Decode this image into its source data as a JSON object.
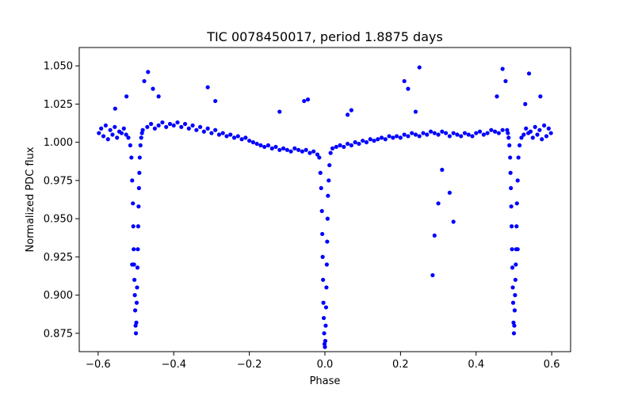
{
  "chart_data": {
    "type": "scatter",
    "title": "TIC 0078450017, period 1.8875 days",
    "xlabel": "Phase",
    "ylabel": "Normalized PDC flux",
    "xlim": [
      -0.65,
      0.65
    ],
    "ylim": [
      0.863,
      1.062
    ],
    "x_ticks": [
      -0.6,
      -0.4,
      -0.2,
      0.0,
      0.2,
      0.4,
      0.6
    ],
    "x_tick_labels": [
      "−0.6",
      "−0.4",
      "−0.2",
      "0.0",
      "0.2",
      "0.4",
      "0.6"
    ],
    "y_ticks": [
      0.875,
      0.9,
      0.925,
      0.95,
      0.975,
      1.0,
      1.025,
      1.05
    ],
    "y_tick_labels": [
      "0.875",
      "0.900",
      "0.925",
      "0.950",
      "0.975",
      "1.000",
      "1.025",
      "1.050"
    ],
    "grid": false,
    "marker_color": "#0000ff",
    "series": [
      {
        "x": [
          -0.598,
          -0.592,
          -0.586,
          -0.58,
          -0.574,
          -0.568,
          -0.562,
          -0.556,
          -0.55,
          -0.544,
          -0.538,
          -0.532,
          -0.526,
          -0.52,
          -0.515,
          -0.512,
          -0.51,
          -0.508,
          -0.507,
          -0.506,
          -0.505,
          -0.504,
          -0.503,
          -0.502,
          -0.501,
          -0.5,
          -0.499,
          -0.498,
          -0.497,
          -0.496,
          -0.495,
          -0.494,
          -0.493,
          -0.492,
          -0.491,
          -0.49,
          -0.488,
          -0.486,
          -0.484,
          -0.482,
          -0.47,
          -0.46,
          -0.45,
          -0.44,
          -0.43,
          -0.42,
          -0.41,
          -0.4,
          -0.39,
          -0.38,
          -0.37,
          -0.36,
          -0.35,
          -0.34,
          -0.33,
          -0.32,
          -0.31,
          -0.3,
          -0.29,
          -0.28,
          -0.27,
          -0.26,
          -0.25,
          -0.24,
          -0.23,
          -0.22,
          -0.21,
          -0.2,
          -0.19,
          -0.18,
          -0.17,
          -0.16,
          -0.15,
          -0.14,
          -0.13,
          -0.12,
          -0.11,
          -0.1,
          -0.09,
          -0.08,
          -0.07,
          -0.06,
          -0.05,
          -0.04,
          -0.03,
          -0.02,
          -0.015,
          -0.012,
          -0.01,
          -0.008,
          -0.007,
          -0.006,
          -0.005,
          -0.004,
          -0.003,
          -0.002,
          -0.001,
          0.0,
          0.001,
          0.002,
          0.003,
          0.004,
          0.005,
          0.006,
          0.007,
          0.008,
          0.01,
          0.012,
          0.015,
          0.02,
          0.03,
          0.04,
          0.05,
          0.06,
          0.07,
          0.08,
          0.09,
          0.1,
          0.11,
          0.12,
          0.13,
          0.14,
          0.15,
          0.16,
          0.17,
          0.18,
          0.19,
          0.2,
          0.21,
          0.22,
          0.23,
          0.24,
          0.25,
          0.26,
          0.27,
          0.28,
          0.29,
          0.3,
          0.31,
          0.32,
          0.33,
          0.34,
          0.35,
          0.36,
          0.37,
          0.38,
          0.39,
          0.4,
          0.41,
          0.42,
          0.43,
          0.44,
          0.45,
          0.46,
          0.47,
          0.482,
          0.484,
          0.486,
          0.488,
          0.49,
          0.491,
          0.492,
          0.493,
          0.494,
          0.495,
          0.496,
          0.497,
          0.498,
          0.499,
          0.5,
          0.501,
          0.502,
          0.503,
          0.504,
          0.505,
          0.506,
          0.507,
          0.508,
          0.51,
          0.512,
          0.515,
          0.52,
          0.526,
          0.532,
          0.538,
          0.544,
          0.55,
          0.556,
          0.562,
          0.568,
          0.574,
          0.58,
          0.586,
          0.592,
          0.598,
          -0.555,
          -0.525,
          -0.478,
          -0.468,
          -0.455,
          -0.44,
          -0.31,
          -0.29,
          -0.12,
          -0.055,
          -0.045,
          0.06,
          0.07,
          0.21,
          0.22,
          0.24,
          0.25,
          0.31,
          0.33,
          0.34,
          0.285,
          0.29,
          0.3,
          0.455,
          0.47,
          0.478,
          0.54,
          0.57,
          0.53,
          0.51,
          -0.51
        ],
        "y": [
          1.006,
          1.009,
          1.004,
          1.011,
          1.002,
          1.008,
          1.005,
          1.01,
          1.003,
          1.007,
          1.006,
          1.009,
          1.005,
          1.003,
          0.998,
          0.99,
          0.975,
          0.96,
          0.945,
          0.93,
          0.92,
          0.91,
          0.9,
          0.89,
          0.88,
          0.875,
          0.882,
          0.895,
          0.905,
          0.918,
          0.93,
          0.945,
          0.958,
          0.97,
          0.98,
          0.99,
          0.998,
          1.003,
          1.006,
          1.008,
          1.01,
          1.012,
          1.009,
          1.011,
          1.013,
          1.01,
          1.012,
          1.011,
          1.013,
          1.01,
          1.012,
          1.009,
          1.011,
          1.008,
          1.01,
          1.007,
          1.009,
          1.006,
          1.008,
          1.005,
          1.006,
          1.004,
          1.005,
          1.003,
          1.004,
          1.002,
          1.003,
          1.001,
          1.0,
          0.999,
          0.998,
          0.997,
          0.998,
          0.996,
          0.997,
          0.995,
          0.996,
          0.995,
          0.994,
          0.996,
          0.995,
          0.994,
          0.995,
          0.993,
          0.994,
          0.992,
          0.99,
          0.98,
          0.97,
          0.955,
          0.94,
          0.925,
          0.91,
          0.895,
          0.885,
          0.875,
          0.868,
          0.866,
          0.87,
          0.88,
          0.892,
          0.905,
          0.92,
          0.935,
          0.95,
          0.965,
          0.975,
          0.985,
          0.993,
          0.996,
          0.997,
          0.998,
          0.997,
          0.999,
          0.998,
          1.0,
          0.999,
          1.001,
          1.0,
          1.002,
          1.001,
          1.002,
          1.003,
          1.002,
          1.004,
          1.003,
          1.004,
          1.003,
          1.005,
          1.004,
          1.006,
          1.005,
          1.004,
          1.006,
          1.005,
          1.007,
          1.006,
          1.005,
          1.007,
          1.006,
          1.004,
          1.006,
          1.005,
          1.004,
          1.006,
          1.005,
          1.004,
          1.006,
          1.007,
          1.005,
          1.006,
          1.008,
          1.007,
          1.006,
          1.008,
          1.008,
          1.006,
          1.003,
          0.998,
          0.99,
          0.98,
          0.97,
          0.958,
          0.945,
          0.93,
          0.918,
          0.905,
          0.895,
          0.882,
          0.875,
          0.88,
          0.89,
          0.9,
          0.91,
          0.92,
          0.93,
          0.945,
          0.96,
          0.975,
          0.99,
          0.998,
          1.003,
          1.005,
          1.009,
          1.006,
          1.007,
          1.003,
          1.01,
          1.005,
          1.008,
          1.002,
          1.011,
          1.004,
          1.009,
          1.006,
          1.022,
          1.03,
          1.04,
          1.046,
          1.035,
          1.03,
          1.036,
          1.027,
          1.02,
          1.027,
          1.028,
          1.018,
          1.021,
          1.04,
          1.035,
          1.02,
          1.049,
          0.982,
          0.967,
          0.948,
          0.913,
          0.939,
          0.96,
          1.03,
          1.048,
          1.04,
          1.045,
          1.03,
          1.025,
          0.93,
          0.92
        ]
      }
    ]
  }
}
